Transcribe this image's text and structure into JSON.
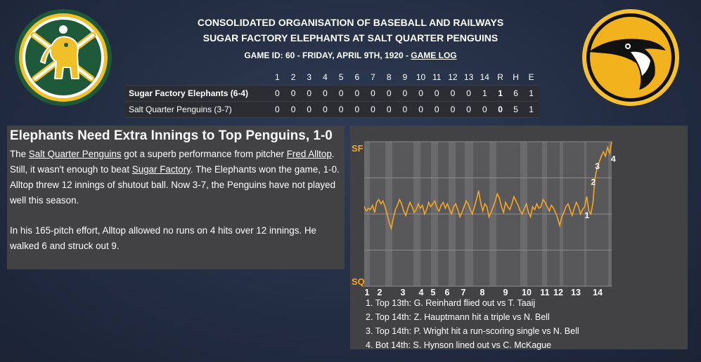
{
  "header": {
    "league": "CONSOLIDATED ORGANISATION OF BASEBALL AND RAILWAYS",
    "matchup": "SUGAR FACTORY ELEPHANTS AT SALT QUARTER PENGUINS",
    "game_info": "GAME ID: 60 - FRIDAY, APRIL 9TH, 1920 - ",
    "game_log_link": "GAME LOG"
  },
  "logos": {
    "away": {
      "name": "elephant-logo",
      "colors": [
        "#1e5a3a",
        "#f0c028"
      ]
    },
    "home": {
      "name": "penguin-logo",
      "colors": [
        "#f2b21d",
        "#111111"
      ]
    }
  },
  "boxscore": {
    "headers": [
      "1",
      "2",
      "3",
      "4",
      "5",
      "6",
      "7",
      "8",
      "9",
      "10",
      "11",
      "12",
      "13",
      "14",
      "R",
      "H",
      "E"
    ],
    "rows": [
      {
        "team": "Sugar Factory Elephants (6-4)",
        "innings": [
          "0",
          "0",
          "0",
          "0",
          "0",
          "0",
          "0",
          "0",
          "0",
          "0",
          "0",
          "0",
          "0",
          "1"
        ],
        "r": "1",
        "h": "6",
        "e": "1"
      },
      {
        "team": "Salt Quarter Penguins (3-7)",
        "innings": [
          "0",
          "0",
          "0",
          "0",
          "0",
          "0",
          "0",
          "0",
          "0",
          "0",
          "0",
          "0",
          "0",
          "0"
        ],
        "r": "0",
        "h": "5",
        "e": "1"
      }
    ]
  },
  "story": {
    "headline": "Elephants Need Extra Innings to Top Penguins, 1-0",
    "p1": {
      "t1": "The ",
      "team_link": "Salt Quarter Penguins",
      "t2": " got a superb performance from pitcher ",
      "pitcher_link": "Fred Alltop",
      "t3": ". Still, it wasn't enough to beat ",
      "opp_link": "Sugar Factory",
      "t4": ". The Elephants won the game, 1-0. Alltop threw 12 innings of shutout ball. Now 3-7, the Penguins have not played well this season."
    },
    "p2": "In his 165-pitch effort, Alltop allowed no runs on 4 hits over 12 innings. He walked 6 and struck out 9."
  },
  "chart_data": {
    "type": "line",
    "title": "",
    "y_top_label": "SF",
    "y_bottom_label": "SQ",
    "line_color": "#f5a623",
    "x_tick_labels": [
      "1",
      "2",
      "3",
      "4",
      "5",
      "6",
      "7",
      "8",
      "9",
      "10",
      "11",
      "12",
      "13",
      "14"
    ],
    "ylim": [
      0,
      1
    ],
    "values": [
      0.55,
      0.52,
      0.54,
      0.53,
      0.56,
      0.51,
      0.58,
      0.6,
      0.57,
      0.59,
      0.55,
      0.5,
      0.44,
      0.4,
      0.47,
      0.53,
      0.56,
      0.6,
      0.57,
      0.52,
      0.49,
      0.54,
      0.58,
      0.55,
      0.51,
      0.53,
      0.57,
      0.54,
      0.56,
      0.5,
      0.53,
      0.58,
      0.55,
      0.57,
      0.59,
      0.54,
      0.52,
      0.56,
      0.58,
      0.54,
      0.57,
      0.53,
      0.5,
      0.55,
      0.57,
      0.53,
      0.48,
      0.51,
      0.55,
      0.59,
      0.57,
      0.53,
      0.5,
      0.55,
      0.6,
      0.66,
      0.58,
      0.52,
      0.57,
      0.55,
      0.48,
      0.51,
      0.55,
      0.59,
      0.64,
      0.61,
      0.55,
      0.51,
      0.58,
      0.55,
      0.53,
      0.57,
      0.62,
      0.59,
      0.56,
      0.52,
      0.5,
      0.54,
      0.57,
      0.51,
      0.48,
      0.55,
      0.53,
      0.57,
      0.54,
      0.55,
      0.6,
      0.58,
      0.55,
      0.52,
      0.56,
      0.54,
      0.51,
      0.47,
      0.42,
      0.48,
      0.51,
      0.55,
      0.57,
      0.53,
      0.49,
      0.54,
      0.58,
      0.55,
      0.5,
      0.53,
      0.55,
      0.62,
      0.52,
      0.5,
      0.58,
      0.75,
      0.82,
      0.86,
      0.9,
      0.93,
      0.9,
      0.96,
      0.92,
      1.0
    ],
    "annotations": [
      {
        "label": "1",
        "text": "1. Top 13th: G. Reinhard flied out vs T. Taaij"
      },
      {
        "label": "2",
        "text": "2. Top 14th: Z. Hauptmann hit a triple vs N. Bell"
      },
      {
        "label": "3",
        "text": "3. Top 14th: P. Wright hit a run-scoring single vs N. Bell"
      },
      {
        "label": "4",
        "text": "4. Bot 14th: S. Hynson lined out vs C. McKague"
      }
    ]
  }
}
